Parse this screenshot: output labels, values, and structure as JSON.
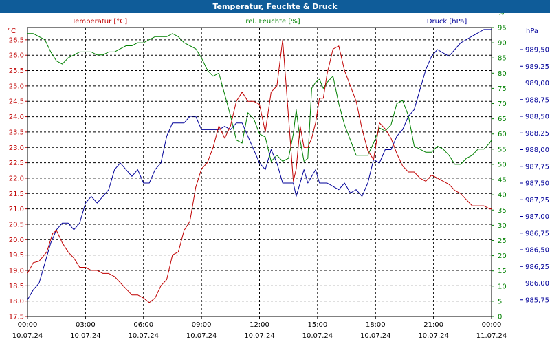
{
  "window": {
    "title": "Temperatur, Feuchte & Druck"
  },
  "chart_data": {
    "type": "line",
    "x_ticks": [
      {
        "time": "00:00",
        "date": "10.07.24"
      },
      {
        "time": "03:00",
        "date": "10.07.24"
      },
      {
        "time": "06:00",
        "date": "10.07.24"
      },
      {
        "time": "09:00",
        "date": "10.07.24"
      },
      {
        "time": "12:00",
        "date": "10.07.24"
      },
      {
        "time": "15:00",
        "date": "10.07.24"
      },
      {
        "time": "18:00",
        "date": "10.07.24"
      },
      {
        "time": "21:00",
        "date": "10.07.24"
      },
      {
        "time": "00:00",
        "date": "11.07.24"
      }
    ],
    "xlim_hours": [
      0,
      24
    ],
    "grid": true,
    "axes": {
      "temperature": {
        "title": "Temperatur [°C]",
        "unit": "°C",
        "color": "#c00000",
        "ylim": [
          17.5,
          26.9
        ],
        "ticks": [
          "17.5",
          "18.0",
          "18.5",
          "19.0",
          "19.5",
          "20.0",
          "20.5",
          "21.0",
          "21.5",
          "22.0",
          "22.5",
          "23.0",
          "23.5",
          "24.0",
          "24.5",
          "25.0",
          "25.5",
          "26.0",
          "26.5"
        ]
      },
      "humidity": {
        "title": "rel. Feuchte [%]",
        "unit": "%",
        "color": "#008000",
        "ylim": [
          0,
          95
        ],
        "ticks": [
          "0",
          "5",
          "10",
          "15",
          "20",
          "25",
          "30",
          "35",
          "40",
          "45",
          "50",
          "55",
          "60",
          "65",
          "70",
          "75",
          "80",
          "85",
          "90",
          "95",
          "%"
        ]
      },
      "pressure": {
        "title": "Druck [hPa]",
        "unit": "hPa",
        "color": "#000099",
        "ylim": [
          985.5,
          989.83
        ],
        "ticks": [
          "985,75",
          "986,00",
          "986,25",
          "986,50",
          "986,75",
          "987,00",
          "987,25",
          "987,50",
          "987,75",
          "988,00",
          "988,25",
          "988,50",
          "988,75",
          "989,00",
          "989,25",
          "989,50"
        ]
      }
    },
    "series": [
      {
        "name": "Temperatur [°C]",
        "axis": "temperature",
        "color": "#c00000",
        "x": [
          0,
          0.3,
          0.6,
          1,
          1.3,
          1.5,
          1.8,
          2.1,
          2.4,
          2.7,
          3,
          3.3,
          3.6,
          3.9,
          4.2,
          4.5,
          4.8,
          5.1,
          5.4,
          5.7,
          6,
          6.3,
          6.6,
          6.9,
          7.2,
          7.5,
          7.8,
          8.1,
          8.4,
          8.7,
          9,
          9.3,
          9.6,
          9.9,
          10.2,
          10.5,
          10.8,
          11.1,
          11.4,
          11.7,
          12,
          12.3,
          12.6,
          12.9,
          13.2,
          13.5,
          13.75,
          13.9,
          14.1,
          14.3,
          14.5,
          14.7,
          14.9,
          15.1,
          15.3,
          15.5,
          15.8,
          16.1,
          16.4,
          16.7,
          17,
          17.3,
          17.6,
          17.9,
          18.2,
          18.5,
          18.8,
          19.1,
          19.4,
          19.7,
          20,
          20.3,
          20.6,
          20.9,
          21.2,
          21.5,
          21.8,
          22.1,
          22.4,
          22.7,
          23,
          23.3,
          23.6,
          23.9,
          24
        ],
        "values": [
          18.9,
          19.25,
          19.3,
          19.6,
          20.2,
          20.3,
          19.9,
          19.6,
          19.4,
          19.1,
          19.1,
          19.0,
          19.0,
          18.9,
          18.9,
          18.8,
          18.6,
          18.4,
          18.2,
          18.2,
          18.1,
          17.95,
          18.1,
          18.5,
          18.7,
          19.5,
          19.6,
          20.3,
          20.6,
          21.7,
          22.3,
          22.5,
          23.0,
          23.7,
          23.3,
          23.7,
          24.5,
          24.8,
          24.5,
          24.5,
          24.4,
          23.5,
          24.8,
          25.0,
          26.5,
          24.0,
          21.9,
          22.3,
          23.7,
          23.0,
          23.0,
          23.3,
          23.8,
          24.6,
          24.6,
          25.4,
          26.2,
          26.3,
          25.5,
          25.0,
          24.5,
          23.6,
          22.9,
          22.6,
          23.8,
          23.6,
          23.3,
          22.8,
          22.4,
          22.2,
          22.2,
          22.0,
          21.9,
          22.1,
          22.0,
          21.9,
          21.8,
          21.6,
          21.5,
          21.3,
          21.1,
          21.1,
          21.1,
          21.0,
          21.0
        ]
      },
      {
        "name": "rel. Feuchte [%]",
        "axis": "humidity",
        "color": "#008000",
        "x": [
          0,
          0.3,
          0.6,
          0.9,
          1.2,
          1.5,
          1.8,
          2.1,
          2.4,
          2.7,
          3,
          3.3,
          3.6,
          3.9,
          4.2,
          4.5,
          4.8,
          5.1,
          5.4,
          5.7,
          6,
          6.3,
          6.6,
          6.9,
          7.2,
          7.5,
          7.8,
          8.1,
          8.4,
          8.7,
          9,
          9.3,
          9.6,
          9.9,
          10.2,
          10.5,
          10.8,
          11.1,
          11.4,
          11.7,
          12,
          12.3,
          12.6,
          12.9,
          13.2,
          13.5,
          13.75,
          13.9,
          14.1,
          14.3,
          14.5,
          14.7,
          14.9,
          15.1,
          15.3,
          15.5,
          15.8,
          16.1,
          16.4,
          16.7,
          17,
          17.3,
          17.6,
          17.9,
          18.2,
          18.5,
          18.8,
          19.1,
          19.4,
          19.7,
          20,
          20.3,
          20.6,
          20.9,
          21.2,
          21.5,
          21.8,
          22.1,
          22.4,
          22.7,
          23,
          23.3,
          23.6,
          23.9,
          24
        ],
        "values": [
          93,
          93,
          92,
          91,
          87,
          84,
          83,
          85,
          86,
          87,
          87,
          87,
          86,
          86,
          87,
          87,
          88,
          89,
          89,
          90,
          90,
          91,
          92,
          92,
          92,
          93,
          92,
          90,
          89,
          88,
          85,
          81,
          79,
          80,
          73,
          66,
          58,
          57,
          67,
          65,
          60,
          59,
          51,
          53,
          51,
          52,
          60,
          68,
          58,
          51,
          52,
          75,
          77,
          78,
          75,
          77,
          79,
          70,
          63,
          58,
          53,
          53,
          53,
          57,
          62,
          61,
          63,
          70,
          71,
          66,
          56,
          55,
          54,
          54,
          56,
          55,
          53,
          50,
          50,
          52,
          53,
          55,
          55,
          57,
          58
        ]
      },
      {
        "name": "Druck [hPa]",
        "axis": "pressure",
        "color": "#000099",
        "x": [
          0,
          0.3,
          0.6,
          0.9,
          1.2,
          1.5,
          1.8,
          2.1,
          2.4,
          2.7,
          3,
          3.3,
          3.6,
          3.9,
          4.2,
          4.5,
          4.8,
          5.1,
          5.4,
          5.7,
          6,
          6.3,
          6.6,
          6.9,
          7.2,
          7.5,
          7.8,
          8.1,
          8.4,
          8.7,
          9,
          9.3,
          9.6,
          9.9,
          10.2,
          10.5,
          10.8,
          11.1,
          11.4,
          11.7,
          12,
          12.3,
          12.6,
          12.9,
          13.2,
          13.5,
          13.75,
          13.9,
          14.1,
          14.3,
          14.5,
          14.7,
          14.9,
          15.1,
          15.3,
          15.5,
          15.8,
          16.1,
          16.4,
          16.7,
          17,
          17.3,
          17.6,
          17.9,
          18.2,
          18.5,
          18.8,
          19.1,
          19.4,
          19.7,
          20,
          20.3,
          20.6,
          20.9,
          21.2,
          21.5,
          21.8,
          22.1,
          22.4,
          22.7,
          23,
          23.3,
          23.6,
          23.9,
          24
        ],
        "values": [
          985.75,
          985.9,
          986.0,
          986.3,
          986.6,
          986.8,
          986.9,
          986.9,
          986.8,
          986.9,
          987.2,
          987.3,
          987.2,
          987.3,
          987.4,
          987.7,
          987.8,
          987.7,
          987.6,
          987.7,
          987.5,
          987.5,
          987.7,
          987.8,
          988.2,
          988.4,
          988.4,
          988.4,
          988.5,
          988.5,
          988.3,
          988.3,
          988.3,
          988.3,
          988.35,
          988.3,
          988.4,
          988.4,
          988.2,
          988.0,
          987.8,
          987.7,
          988.0,
          987.8,
          987.5,
          987.5,
          987.5,
          987.3,
          987.5,
          987.7,
          987.5,
          987.6,
          987.7,
          987.5,
          987.5,
          987.5,
          987.45,
          987.4,
          987.5,
          987.35,
          987.4,
          987.3,
          987.5,
          987.85,
          987.8,
          988.0,
          988.0,
          988.2,
          988.3,
          988.5,
          988.6,
          988.9,
          989.2,
          989.4,
          989.5,
          989.45,
          989.4,
          989.5,
          989.6,
          989.65,
          989.7,
          989.75,
          989.8,
          989.8,
          989.8
        ]
      }
    ]
  }
}
